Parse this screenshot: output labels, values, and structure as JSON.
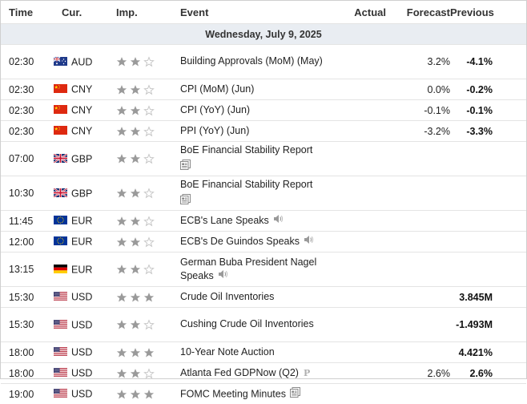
{
  "columns": {
    "time": "Time",
    "currency": "Cur.",
    "importance": "Imp.",
    "event": "Event",
    "actual": "Actual",
    "forecast": "Forecast",
    "previous": "Previous"
  },
  "day_header": "Wednesday, July 9, 2025",
  "colors": {
    "star_filled": "#9a9a9a",
    "star_empty": "#c4c4c4",
    "day_bg": "#e9edf2",
    "row_border": "#e4e4e4"
  },
  "events": [
    {
      "time": "02:30",
      "currency": "AUD",
      "flag": "au-flag",
      "importance": 2,
      "event": "Building Approvals (MoM) (May)",
      "icon": null,
      "actual": "",
      "forecast": "3.2%",
      "previous": "-4.1%"
    },
    {
      "time": "02:30",
      "currency": "CNY",
      "flag": "cn-flag",
      "importance": 2,
      "event": "CPI (MoM) (Jun)",
      "icon": null,
      "actual": "",
      "forecast": "0.0%",
      "previous": "-0.2%"
    },
    {
      "time": "02:30",
      "currency": "CNY",
      "flag": "cn-flag",
      "importance": 2,
      "event": "CPI (YoY) (Jun)",
      "icon": null,
      "actual": "",
      "forecast": "-0.1%",
      "previous": "-0.1%"
    },
    {
      "time": "02:30",
      "currency": "CNY",
      "flag": "cn-flag",
      "importance": 2,
      "event": "PPI (YoY) (Jun)",
      "icon": null,
      "actual": "",
      "forecast": "-3.2%",
      "previous": "-3.3%"
    },
    {
      "time": "07:00",
      "currency": "GBP",
      "flag": "gb-flag",
      "importance": 2,
      "event": "BoE Financial Stability Report",
      "icon": "report-icon",
      "actual": "",
      "forecast": "",
      "previous": ""
    },
    {
      "time": "10:30",
      "currency": "GBP",
      "flag": "gb-flag",
      "importance": 2,
      "event": "BoE Financial Stability Report",
      "icon": "report-icon",
      "actual": "",
      "forecast": "",
      "previous": ""
    },
    {
      "time": "11:45",
      "currency": "EUR",
      "flag": "eu-flag",
      "importance": 2,
      "event": "ECB's Lane Speaks",
      "icon": "speaker-icon",
      "actual": "",
      "forecast": "",
      "previous": ""
    },
    {
      "time": "12:00",
      "currency": "EUR",
      "flag": "eu-flag",
      "importance": 2,
      "event": "ECB's De Guindos Speaks",
      "icon": "speaker-icon",
      "actual": "",
      "forecast": "",
      "previous": ""
    },
    {
      "time": "13:15",
      "currency": "EUR",
      "flag": "de-flag",
      "importance": 2,
      "event": "German Buba President Nagel Speaks",
      "icon": "speaker-icon",
      "actual": "",
      "forecast": "",
      "previous": ""
    },
    {
      "time": "15:30",
      "currency": "USD",
      "flag": "us-flag",
      "importance": 3,
      "event": "Crude Oil Inventories",
      "icon": null,
      "actual": "",
      "forecast": "",
      "previous": "3.845M"
    },
    {
      "time": "15:30",
      "currency": "USD",
      "flag": "us-flag",
      "importance": 2,
      "event": "Cushing Crude Oil Inventories",
      "icon": null,
      "actual": "",
      "forecast": "",
      "previous": "-1.493M"
    },
    {
      "time": "18:00",
      "currency": "USD",
      "flag": "us-flag",
      "importance": 3,
      "event": "10-Year Note Auction",
      "icon": null,
      "actual": "",
      "forecast": "",
      "previous": "4.421%"
    },
    {
      "time": "18:00",
      "currency": "USD",
      "flag": "us-flag",
      "importance": 2,
      "event": "Atlanta Fed GDPNow (Q2)",
      "icon": "preliminary-icon",
      "icon_text": "P",
      "actual": "",
      "forecast": "2.6%",
      "previous": "2.6%"
    },
    {
      "time": "19:00",
      "currency": "USD",
      "flag": "us-flag",
      "importance": 3,
      "event": "FOMC Meeting Minutes",
      "icon": "report-icon",
      "actual": "",
      "forecast": "",
      "previous": ""
    }
  ]
}
